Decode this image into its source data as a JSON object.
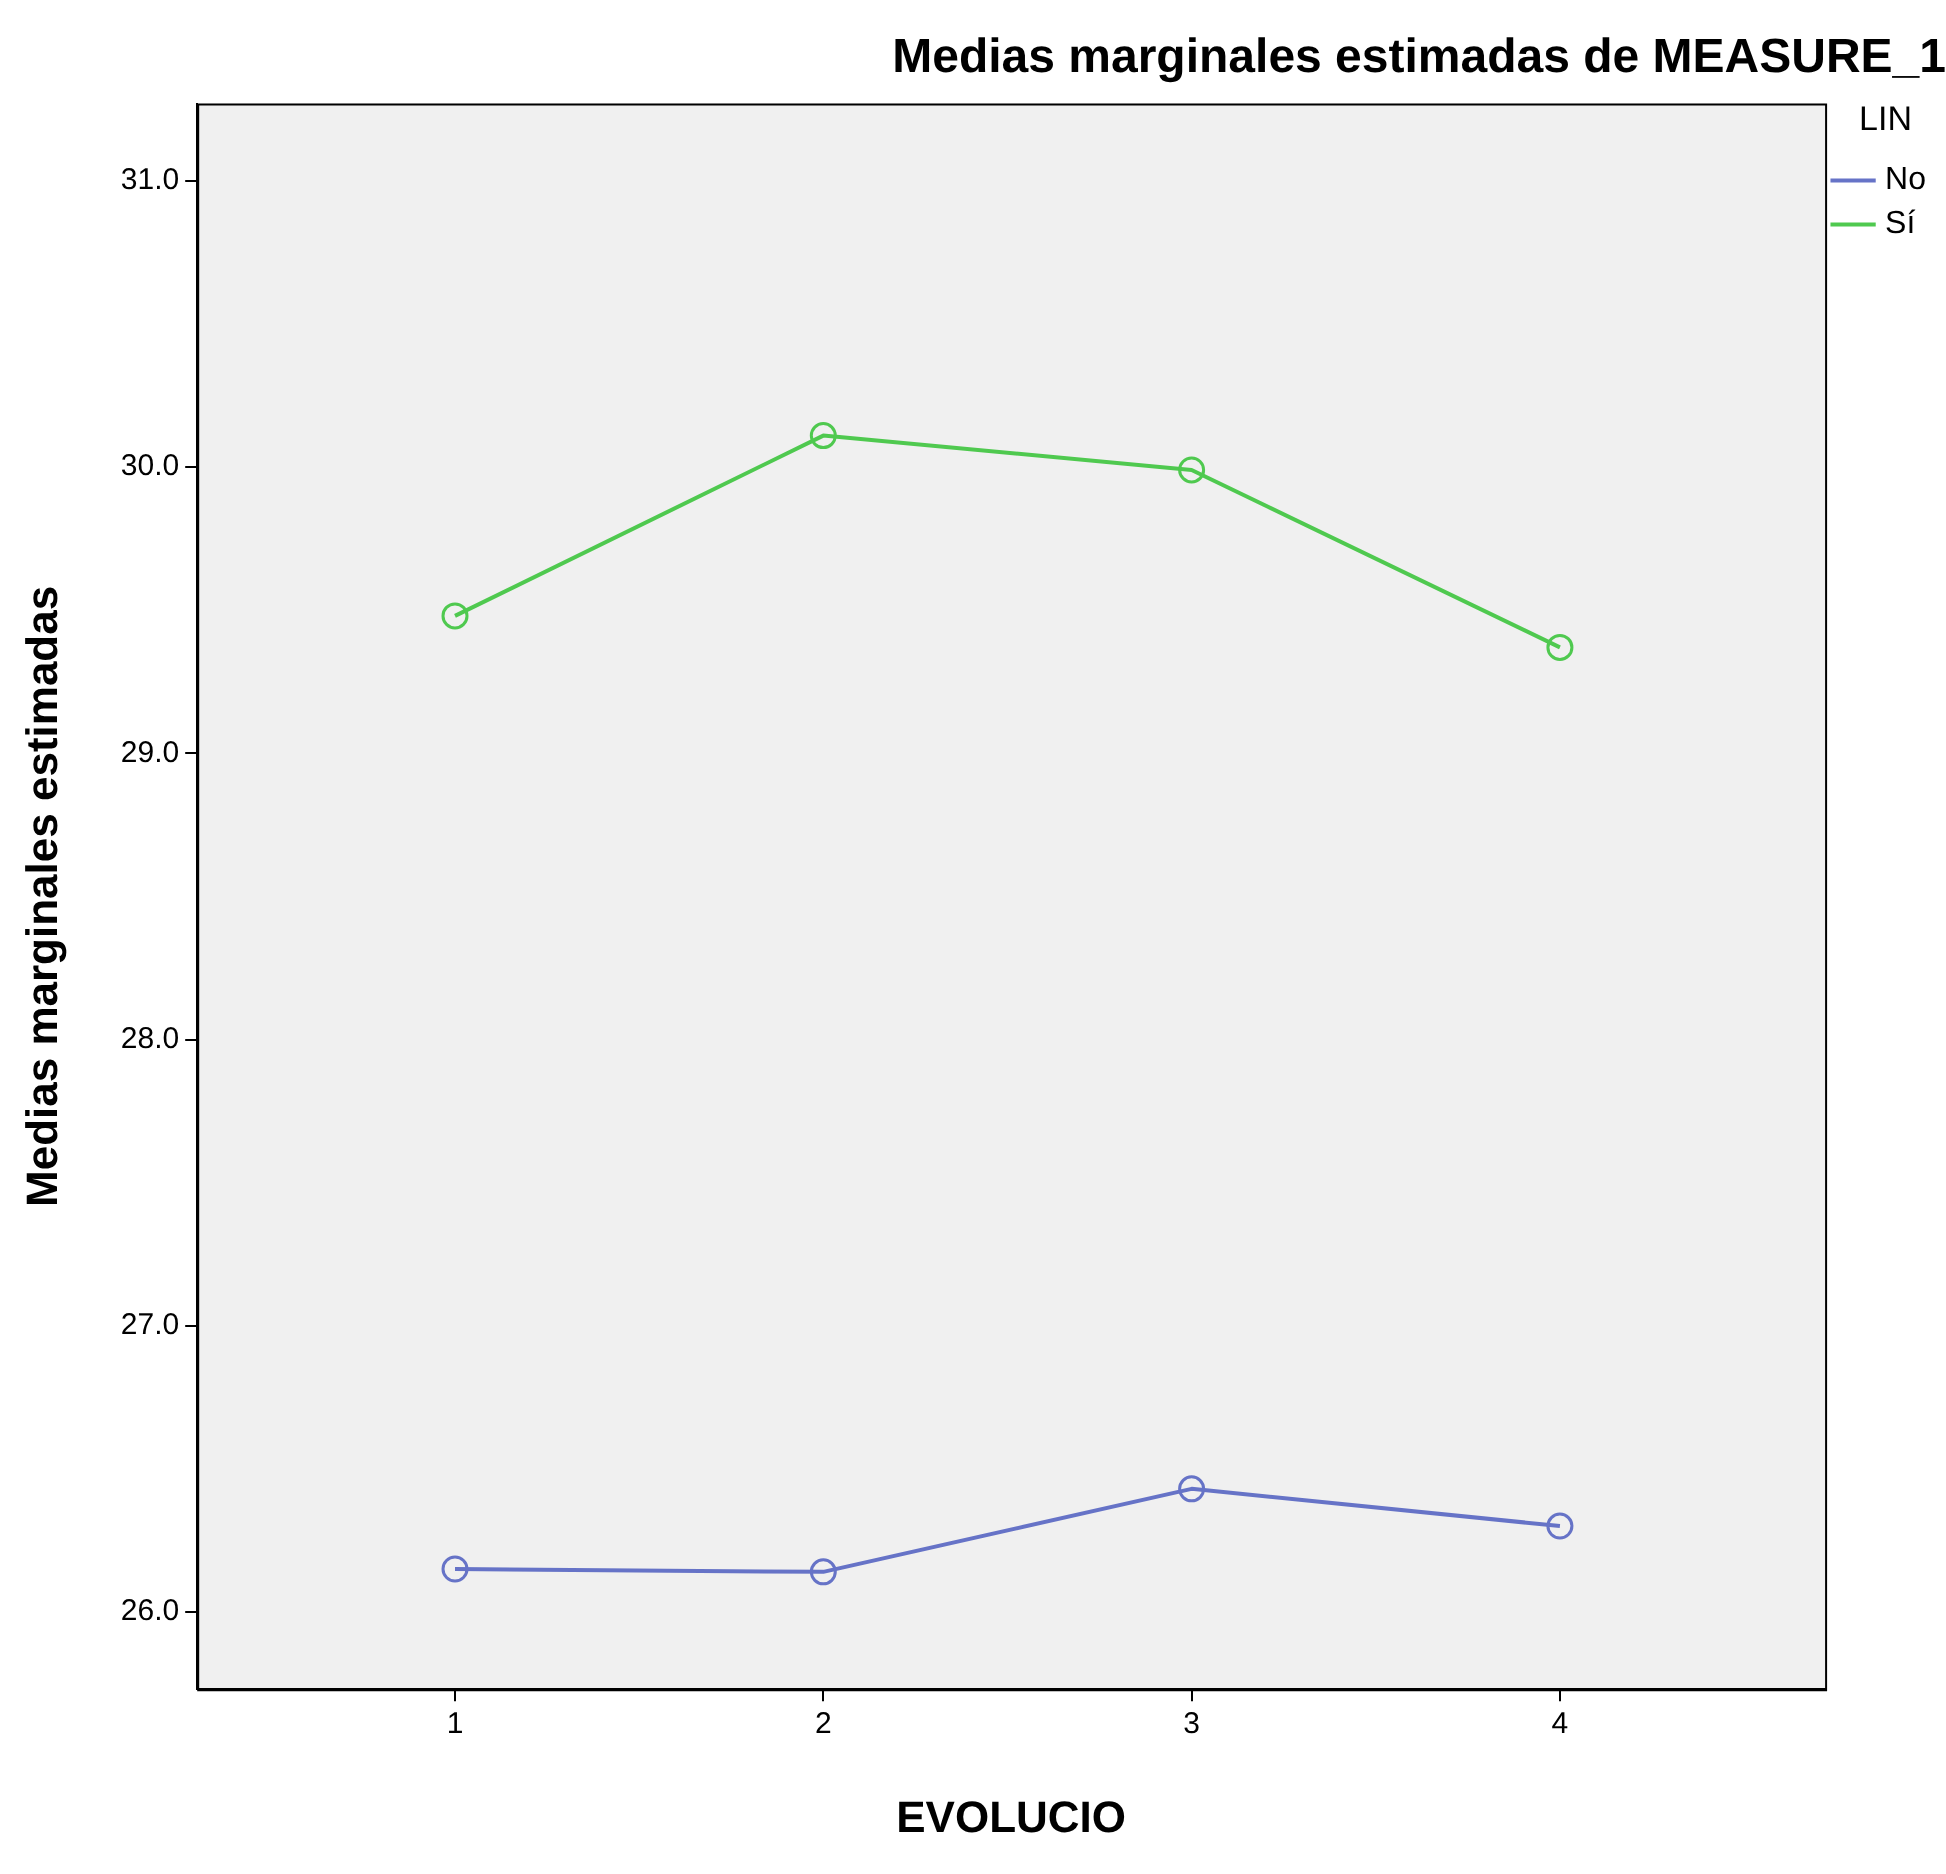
{
  "chart_data": {
    "type": "line",
    "title": "Medias marginales estimadas de MEASURE_1",
    "xlabel": "EVOLUCIO",
    "ylabel": "Medias marginales estimadas",
    "legend_title": "LIN",
    "x": [
      1,
      2,
      3,
      4
    ],
    "series": [
      {
        "name": "No",
        "color": "#6673c7",
        "values": [
          26.15,
          26.14,
          26.43,
          26.3
        ]
      },
      {
        "name": "Sí",
        "color": "#4fc94f",
        "values": [
          29.48,
          30.11,
          29.99,
          29.37
        ]
      }
    ],
    "xlim": [
      0.3,
      4.72
    ],
    "xticks": [
      1,
      2,
      3,
      4
    ],
    "ylim": [
      25.73,
      31.27
    ],
    "yticks": [
      {
        "value": 26,
        "label": "26.0"
      },
      {
        "value": 27,
        "label": "27.0"
      },
      {
        "value": 28,
        "label": "28.0"
      },
      {
        "value": 29,
        "label": "29.0"
      },
      {
        "value": 30,
        "label": "30.0"
      },
      {
        "value": 31,
        "label": "31.0"
      }
    ],
    "grid": false,
    "legend": "top right",
    "marker": "circle",
    "line_style": "solid"
  }
}
